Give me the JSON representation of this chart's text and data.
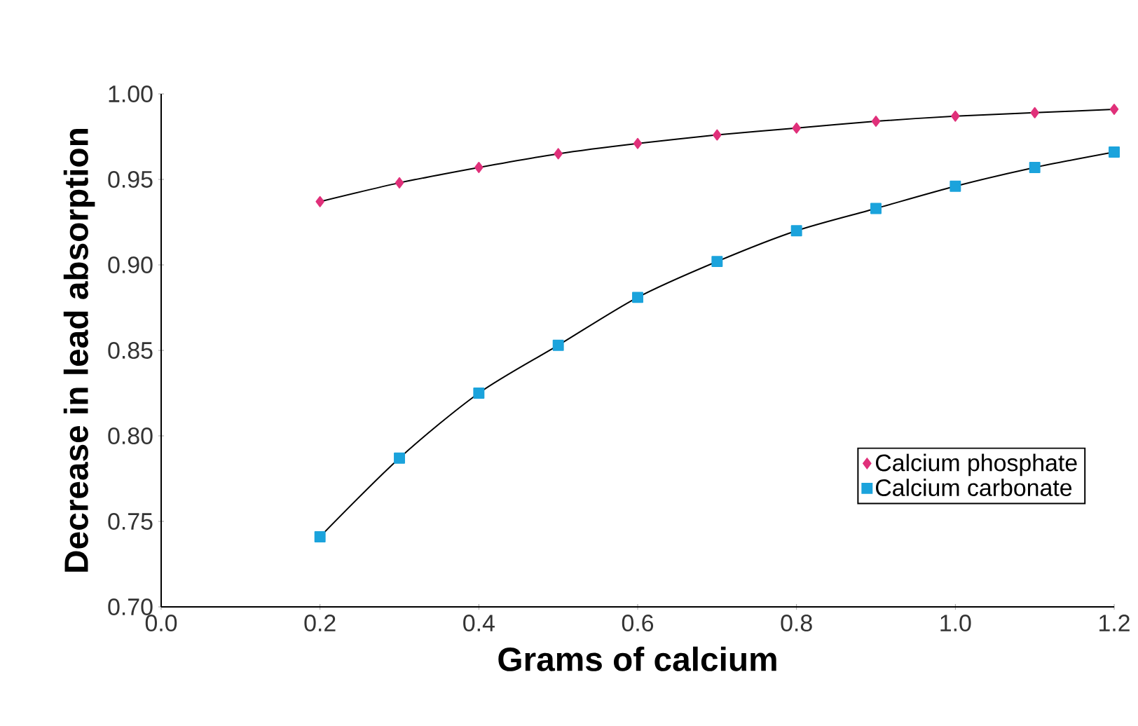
{
  "chart_data": {
    "type": "line",
    "xlabel": "Grams of calcium",
    "ylabel": "Decrease in lead absorption",
    "xlim": [
      0,
      1.2
    ],
    "ylim": [
      0.7,
      1.0
    ],
    "xticks": [
      {
        "value": 0,
        "label": "0.0"
      },
      {
        "value": 0.2,
        "label": "0.2"
      },
      {
        "value": 0.4,
        "label": "0.4"
      },
      {
        "value": 0.6,
        "label": "0.6"
      },
      {
        "value": 0.8,
        "label": "0.8"
      },
      {
        "value": 1.0,
        "label": "1.0"
      },
      {
        "value": 1.2,
        "label": "1.2"
      }
    ],
    "yticks": [
      {
        "value": 0.7,
        "label": "0.70"
      },
      {
        "value": 0.75,
        "label": "0.75"
      },
      {
        "value": 0.8,
        "label": "0.80"
      },
      {
        "value": 0.85,
        "label": "0.85"
      },
      {
        "value": 0.9,
        "label": "0.90"
      },
      {
        "value": 0.95,
        "label": "0.95"
      },
      {
        "value": 1.0,
        "label": "1.00"
      }
    ],
    "x": [
      0.2,
      0.3,
      0.4,
      0.5,
      0.6,
      0.7,
      0.8,
      0.9,
      1.0,
      1.1,
      1.2
    ],
    "legend": "bottom right",
    "grid": false,
    "series": [
      {
        "name": "Calcium phosphate",
        "color": "#e0307a",
        "marker": "diamond",
        "values": [
          0.937,
          0.948,
          0.957,
          0.965,
          0.971,
          0.976,
          0.98,
          0.984,
          0.987,
          0.989,
          0.991
        ]
      },
      {
        "name": "Calcium carbonate",
        "color": "#1ba3dc",
        "marker": "square",
        "values": [
          0.741,
          0.787,
          0.825,
          0.853,
          0.881,
          0.902,
          0.92,
          0.933,
          0.946,
          0.957,
          0.966
        ]
      }
    ]
  }
}
